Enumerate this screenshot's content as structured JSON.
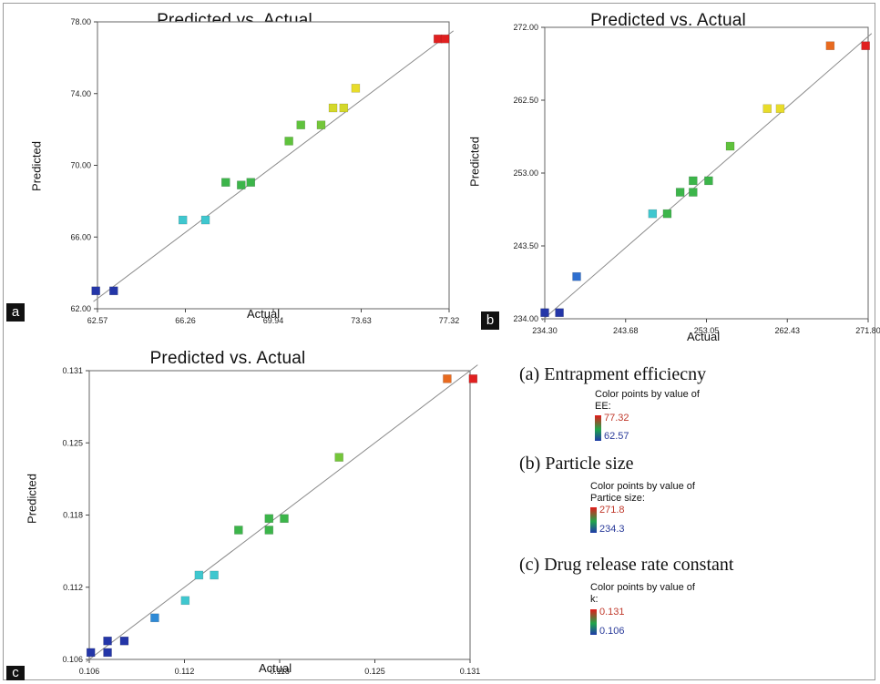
{
  "chart_data": [
    {
      "type": "scatter",
      "panel": "a",
      "title": "Predicted vs. Actual",
      "xlabel": "Actual",
      "ylabel": "Predicted",
      "xlim": [
        62.57,
        77.32
      ],
      "ylim": [
        62.0,
        78.0
      ],
      "x_ticks": [
        "62.57",
        "66.26",
        "69.94",
        "73.63",
        "77.32"
      ],
      "y_ticks": [
        "62.00",
        "66.00",
        "70.00",
        "74.00",
        "78.00"
      ],
      "points": [
        {
          "x": 62.5,
          "y": 63.0,
          "color": "#2436a8"
        },
        {
          "x": 63.25,
          "y": 63.0,
          "color": "#2436a8"
        },
        {
          "x": 66.15,
          "y": 66.95,
          "color": "#3fc7cf"
        },
        {
          "x": 67.1,
          "y": 66.95,
          "color": "#3fc7cf"
        },
        {
          "x": 67.95,
          "y": 69.05,
          "color": "#3cb54a"
        },
        {
          "x": 68.6,
          "y": 68.9,
          "color": "#3cb54a"
        },
        {
          "x": 69.0,
          "y": 69.05,
          "color": "#3cb54a"
        },
        {
          "x": 70.6,
          "y": 71.35,
          "color": "#5fc23c"
        },
        {
          "x": 71.1,
          "y": 72.25,
          "color": "#5fc23c"
        },
        {
          "x": 71.95,
          "y": 72.25,
          "color": "#74c63a"
        },
        {
          "x": 72.45,
          "y": 73.2,
          "color": "#d4d82a"
        },
        {
          "x": 72.9,
          "y": 73.2,
          "color": "#d4d82a"
        },
        {
          "x": 73.4,
          "y": 74.3,
          "color": "#e8dc2a"
        },
        {
          "x": 76.85,
          "y": 77.05,
          "color": "#e02020"
        },
        {
          "x": 77.15,
          "y": 77.05,
          "color": "#e02020"
        }
      ],
      "fit_line": [
        [
          62.4,
          62.4
        ],
        [
          77.5,
          77.5
        ]
      ]
    },
    {
      "type": "scatter",
      "panel": "b",
      "title": "Predicted vs. Actual",
      "xlabel": "Actual",
      "ylabel": "Predicted",
      "xlim": [
        234.3,
        271.8
      ],
      "ylim": [
        234.0,
        272.0
      ],
      "x_ticks": [
        "234.30",
        "243.68",
        "253.05",
        "262.43",
        "271.80"
      ],
      "y_ticks": [
        "234.00",
        "243.50",
        "253.00",
        "262.50",
        "272.00"
      ],
      "points": [
        {
          "x": 234.3,
          "y": 234.8,
          "color": "#2436a8"
        },
        {
          "x": 236.0,
          "y": 234.8,
          "color": "#2436a8"
        },
        {
          "x": 238.0,
          "y": 239.5,
          "color": "#2e6fd0"
        },
        {
          "x": 246.8,
          "y": 247.7,
          "color": "#3fc7cf"
        },
        {
          "x": 248.5,
          "y": 247.7,
          "color": "#3cb54a"
        },
        {
          "x": 250.0,
          "y": 250.5,
          "color": "#3cb54a"
        },
        {
          "x": 251.5,
          "y": 252.0,
          "color": "#3cb54a"
        },
        {
          "x": 251.5,
          "y": 250.5,
          "color": "#3cb54a"
        },
        {
          "x": 253.3,
          "y": 252.0,
          "color": "#3cb54a"
        },
        {
          "x": 255.8,
          "y": 256.5,
          "color": "#5fc23c"
        },
        {
          "x": 260.1,
          "y": 261.4,
          "color": "#e8dc2a"
        },
        {
          "x": 261.6,
          "y": 261.4,
          "color": "#e8dc2a"
        },
        {
          "x": 267.4,
          "y": 269.6,
          "color": "#e86a1f"
        },
        {
          "x": 271.5,
          "y": 269.6,
          "color": "#e02020"
        }
      ],
      "fit_line": [
        [
          234.0,
          233.8
        ],
        [
          272.2,
          271.2
        ]
      ]
    },
    {
      "type": "scatter",
      "panel": "c",
      "title": "Predicted vs. Actual",
      "xlabel": "Actual",
      "ylabel": "Predicted",
      "xlim": [
        0.106,
        0.131
      ],
      "ylim": [
        0.106,
        0.131
      ],
      "x_ticks": [
        "0.106",
        "0.112",
        "0.118",
        "0.125",
        "0.131"
      ],
      "y_ticks": [
        "0.106",
        "0.112",
        "0.118",
        "0.125",
        "0.131"
      ],
      "points": [
        {
          "x": 0.1061,
          "y": 0.1066,
          "color": "#2436a8"
        },
        {
          "x": 0.1072,
          "y": 0.1066,
          "color": "#2436a8"
        },
        {
          "x": 0.1072,
          "y": 0.1076,
          "color": "#2436a8"
        },
        {
          "x": 0.1083,
          "y": 0.1076,
          "color": "#2436a8"
        },
        {
          "x": 0.1103,
          "y": 0.1096,
          "color": "#2e8ad6"
        },
        {
          "x": 0.1123,
          "y": 0.1111,
          "color": "#3fc7cf"
        },
        {
          "x": 0.1132,
          "y": 0.1133,
          "color": "#3fc7cf"
        },
        {
          "x": 0.1142,
          "y": 0.1133,
          "color": "#3fc7cf"
        },
        {
          "x": 0.1158,
          "y": 0.1172,
          "color": "#3cb54a"
        },
        {
          "x": 0.1178,
          "y": 0.1172,
          "color": "#3cb54a"
        },
        {
          "x": 0.1178,
          "y": 0.1182,
          "color": "#3cb54a"
        },
        {
          "x": 0.1188,
          "y": 0.1182,
          "color": "#3cb54a"
        },
        {
          "x": 0.1224,
          "y": 0.1235,
          "color": "#74c63a"
        },
        {
          "x": 0.1295,
          "y": 0.1303,
          "color": "#e86a1f"
        },
        {
          "x": 0.1312,
          "y": 0.1303,
          "color": "#e02020"
        }
      ],
      "fit_line": [
        [
          0.1058,
          0.1058
        ],
        [
          0.1315,
          0.1315
        ]
      ]
    }
  ],
  "panel_letters": {
    "a": "a",
    "b": "b",
    "c": "c"
  },
  "legend": {
    "a": {
      "heading": "(a) Entrapment efficiecny",
      "caption_line1": "Color points by value of",
      "caption_line2": "EE:",
      "high": "77.32",
      "low": "62.57"
    },
    "b": {
      "heading": "(b) Particle size",
      "caption_line1": "Color points by value of",
      "caption_line2": "Partice size:",
      "high": "271.8",
      "low": "234.3"
    },
    "c": {
      "heading": "(c) Drug release rate constant",
      "caption_line1": "Color points by value of",
      "caption_line2": "k:",
      "high": "0.131",
      "low": "0.106"
    }
  }
}
